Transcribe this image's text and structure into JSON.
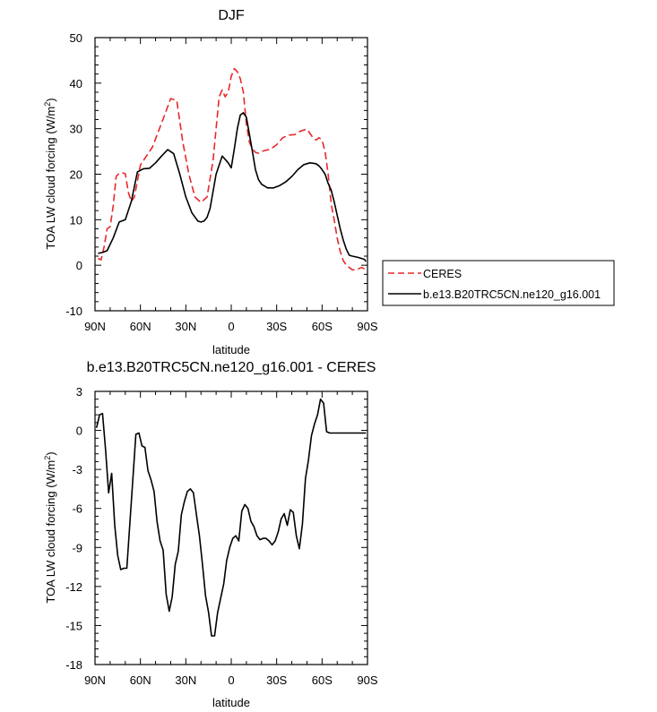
{
  "chart_data": [
    {
      "type": "line",
      "title": "DJF",
      "xlabel": "latitude",
      "ylabel": "TOA LW cloud forcing (W/m²)",
      "xlim": [
        90,
        -90
      ],
      "ylim": [
        -10,
        50
      ],
      "xticks": [
        90,
        60,
        30,
        0,
        -30,
        -60,
        -90
      ],
      "xtick_labels": [
        "90N",
        "60N",
        "30N",
        "0",
        "30S",
        "60S",
        "90S"
      ],
      "yticks": [
        -10,
        0,
        10,
        20,
        30,
        40,
        50
      ],
      "ytick_labels": [
        "-10",
        "0",
        "10",
        "20",
        "30",
        "40",
        "50"
      ],
      "legend_position": "outside-right",
      "series": [
        {
          "name": "CERES",
          "color": "#e8282c",
          "dash": "dashed",
          "x": [
            88,
            86,
            84,
            82,
            80,
            78,
            76,
            74,
            72,
            70,
            68,
            66,
            64,
            62,
            60,
            56,
            52,
            48,
            44,
            40,
            36,
            32,
            28,
            24,
            20,
            16,
            12,
            8,
            6,
            4,
            2,
            0,
            -2,
            -4,
            -6,
            -8,
            -10,
            -12,
            -14,
            -16,
            -18,
            -20,
            -22,
            -26,
            -30,
            -34,
            -38,
            -42,
            -46,
            -50,
            -54,
            -56,
            -58,
            -60,
            -62,
            -64,
            -66,
            -68,
            -70,
            -72,
            -74,
            -76,
            -78,
            -80,
            -82,
            -84,
            -86,
            -88,
            -89
          ],
          "y": [
            1.5,
            1.2,
            4,
            8,
            8.5,
            13,
            19.5,
            20.2,
            20.3,
            20.1,
            16,
            14,
            15,
            18.5,
            22,
            24,
            26,
            29.5,
            33,
            36.6,
            36.2,
            27,
            20,
            15,
            13.8,
            15,
            23,
            37,
            38.5,
            37,
            38,
            41.5,
            43.2,
            42.5,
            41,
            38,
            31,
            27,
            25.5,
            24.8,
            24.6,
            25,
            25.2,
            25.5,
            26.5,
            28,
            28.6,
            28.7,
            29.5,
            29.9,
            28,
            27.5,
            28,
            27.5,
            25,
            20,
            13.5,
            10,
            6,
            3,
            1,
            0,
            -0.5,
            -1,
            -1,
            -0.8,
            -0.5,
            -0.8,
            -0.9
          ]
        },
        {
          "name": "b.e13.B20TRC5CN.ne120_g16.001",
          "color": "#000000",
          "dash": "solid",
          "x": [
            88,
            85,
            82,
            78,
            74,
            70,
            66,
            62,
            58,
            54,
            50,
            46,
            42,
            38,
            34,
            30,
            26,
            22,
            20,
            18,
            16,
            14,
            10,
            6,
            2,
            0,
            -2,
            -4,
            -6,
            -8,
            -10,
            -12,
            -14,
            -16,
            -18,
            -20,
            -24,
            -28,
            -32,
            -36,
            -40,
            -44,
            -48,
            -52,
            -56,
            -58,
            -60,
            -62,
            -64,
            -66,
            -68,
            -70,
            -72,
            -74,
            -76,
            -78,
            -80,
            -84,
            -88,
            -89
          ],
          "y": [
            2.6,
            2.8,
            3.2,
            6,
            9.5,
            10,
            14,
            20.5,
            21.2,
            21.3,
            22.5,
            24,
            25.4,
            24.5,
            20,
            15,
            11.5,
            9.7,
            9.5,
            9.7,
            10.5,
            12.5,
            20,
            24,
            22.5,
            21.4,
            25.5,
            30,
            33,
            33.5,
            32.5,
            28.7,
            25,
            21,
            18.8,
            17.8,
            17,
            17,
            17.5,
            18.3,
            19.5,
            21,
            22.1,
            22.5,
            22.3,
            21.8,
            21,
            20,
            18,
            16.5,
            14,
            11,
            8,
            5.5,
            3.5,
            2.2,
            2,
            1.7,
            1.3,
            0.8
          ]
        }
      ]
    },
    {
      "type": "line",
      "title": "b.e13.B20TRC5CN.ne120_g16.001 - CERES",
      "xlabel": "latitude",
      "ylabel": "TOA LW cloud forcing (W/m²)",
      "xlim": [
        90,
        -90
      ],
      "ylim": [
        -18,
        3
      ],
      "xticks": [
        90,
        60,
        30,
        0,
        -30,
        -60,
        -90
      ],
      "xtick_labels": [
        "90N",
        "60N",
        "30N",
        "0",
        "30S",
        "60S",
        "90S"
      ],
      "yticks": [
        -18,
        -15,
        -12,
        -9,
        -6,
        -3,
        0,
        3
      ],
      "ytick_labels": [
        "-18",
        "-15",
        "-12",
        "-9",
        "-6",
        "-3",
        "0",
        "3"
      ],
      "series": [
        {
          "color": "#000000",
          "dash": "solid",
          "x": [
            89,
            87,
            85,
            83,
            81,
            79,
            77,
            75,
            73,
            71,
            69,
            66,
            63,
            61,
            59,
            57,
            55,
            53,
            51,
            49,
            47,
            45,
            43,
            41,
            39,
            37,
            35,
            33,
            31,
            29,
            27,
            25,
            23,
            21,
            19,
            17,
            15,
            13,
            11,
            9,
            7,
            5,
            3,
            1,
            -1,
            -3,
            -5,
            -7,
            -9,
            -11,
            -13,
            -15,
            -17,
            -19,
            -21,
            -23,
            -25,
            -27,
            -29,
            -31,
            -33,
            -35,
            -37,
            -39,
            -41,
            -43,
            -45,
            -47,
            -49,
            -51,
            -53,
            -55,
            -57,
            -59,
            -61,
            -63,
            -65,
            -67,
            -69,
            -71,
            -73,
            -75,
            -77,
            -79,
            -81,
            -83,
            -85,
            -87,
            -89
          ],
          "y": [
            0.2,
            1.2,
            1.3,
            -1.5,
            -4.8,
            -3.3,
            -7.3,
            -9.6,
            -10.7,
            -10.6,
            -10.6,
            -5.5,
            -0.3,
            -0.2,
            -1.2,
            -1.3,
            -3.1,
            -3.8,
            -4.7,
            -7,
            -8.5,
            -9.2,
            -12.6,
            -13.9,
            -12.8,
            -10.3,
            -9.3,
            -6.5,
            -5.5,
            -4.7,
            -4.5,
            -4.8,
            -6.5,
            -8.1,
            -10.3,
            -12.7,
            -14,
            -15.8,
            -15.8,
            -14,
            -12.9,
            -11.8,
            -10,
            -9,
            -8.3,
            -8.1,
            -8.5,
            -6.2,
            -5.7,
            -6,
            -7,
            -7.4,
            -8.1,
            -8.4,
            -8.3,
            -8.3,
            -8.5,
            -8.8,
            -8.5,
            -7.8,
            -6.8,
            -6.4,
            -7.3,
            -6.1,
            -6.3,
            -8.1,
            -9.1,
            -7.2,
            -3.7,
            -2.3,
            -0.4,
            0.5,
            1.2,
            2.4,
            2.1,
            -0.1,
            -0.2,
            -0.2,
            -0.2,
            -0.2,
            -0.2,
            -0.2,
            -0.2,
            -0.2,
            -0.2,
            -0.2,
            -0.2,
            -0.2,
            -0.2
          ]
        }
      ]
    }
  ]
}
